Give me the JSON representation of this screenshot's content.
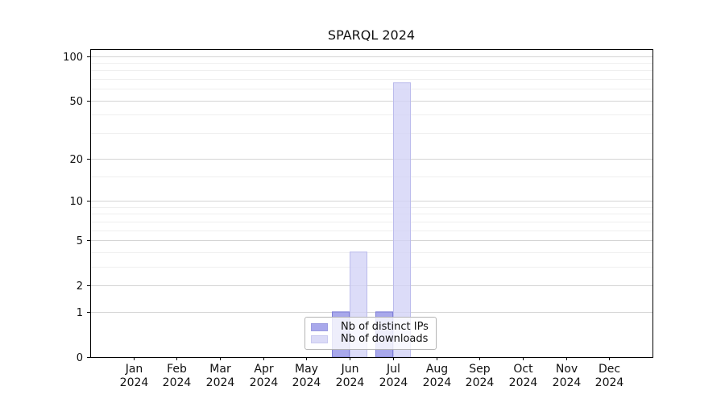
{
  "chart_data": {
    "type": "bar",
    "title": "SPARQL 2024",
    "xlabel": "",
    "ylabel": "",
    "yscale": "symlog (log1p)",
    "ylim": [
      0,
      100
    ],
    "grid": "horizontal",
    "legend_position": "lower center",
    "x_tick_labels": [
      {
        "line1": "Jan",
        "line2": "2024"
      },
      {
        "line1": "Feb",
        "line2": "2024"
      },
      {
        "line1": "Mar",
        "line2": "2024"
      },
      {
        "line1": "Apr",
        "line2": "2024"
      },
      {
        "line1": "May",
        "line2": "2024"
      },
      {
        "line1": "Jun",
        "line2": "2024"
      },
      {
        "line1": "Jul",
        "line2": "2024"
      },
      {
        "line1": "Aug",
        "line2": "2024"
      },
      {
        "line1": "Sep",
        "line2": "2024"
      },
      {
        "line1": "Oct",
        "line2": "2024"
      },
      {
        "line1": "Nov",
        "line2": "2024"
      },
      {
        "line1": "Dec",
        "line2": "2024"
      }
    ],
    "y_major_ticks": [
      0,
      1,
      2,
      5,
      10,
      20,
      50,
      100
    ],
    "y_tick_labels": [
      "0",
      "1",
      "2",
      "5",
      "10",
      "20",
      "50",
      "100"
    ],
    "y_minor_ticks": [
      3,
      4,
      6,
      7,
      8,
      9,
      15,
      30,
      40,
      60,
      70,
      80,
      90
    ],
    "series": [
      {
        "name": "Nb of distinct IPs",
        "color": "#9090e6",
        "edge_color": "#8080d8",
        "values": [
          0,
          0,
          0,
          0,
          0,
          1,
          1,
          0,
          0,
          0,
          0,
          0
        ]
      },
      {
        "name": "Nb of downloads",
        "color": "#d2d2f6",
        "edge_color": "#bcbcec",
        "values": [
          0,
          0,
          0,
          0,
          0,
          4,
          66,
          0,
          0,
          0,
          0,
          0
        ]
      }
    ]
  },
  "styles": {
    "axis_color": "#000000",
    "major_grid_color": "#d4d4d4",
    "minor_grid_color": "#efefef",
    "tick_label_color": "#111111",
    "legend_border_color": "#b5b5b5",
    "bar_opacity": 0.78
  }
}
